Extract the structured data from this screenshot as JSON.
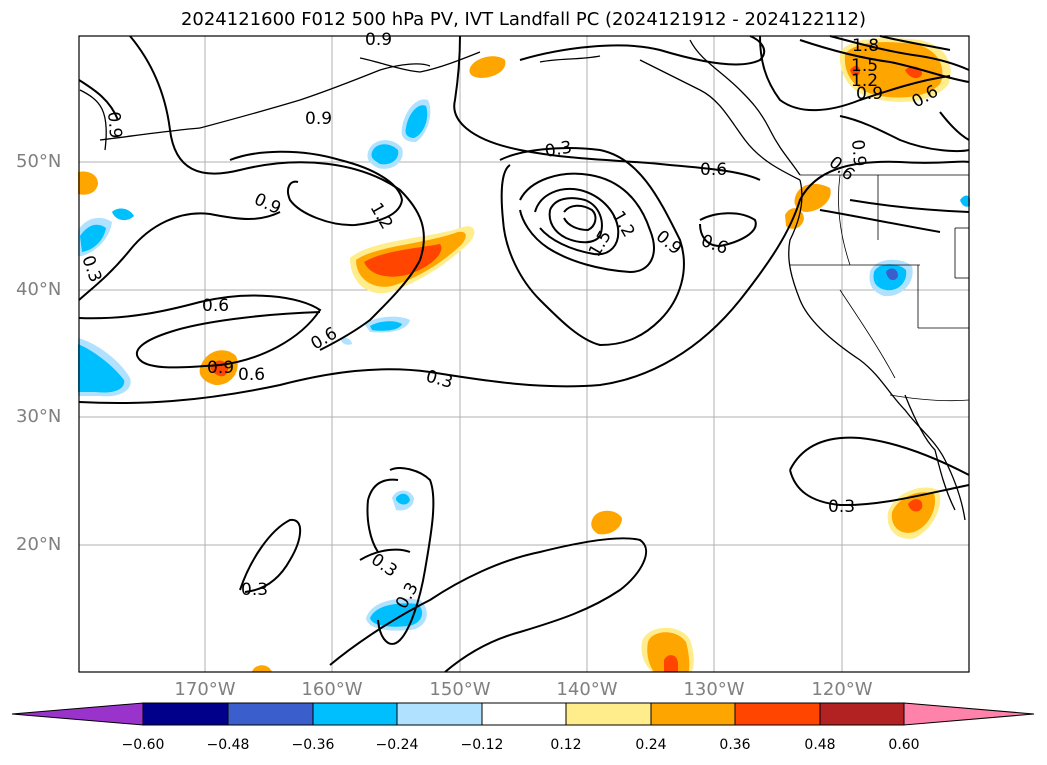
{
  "title": "2024121600 F012 500 hPa PV, IVT Landfall PC (2024121912 - 2024122112)",
  "lat_ticks": [
    "50°N",
    "40°N",
    "30°N",
    "20°N"
  ],
  "lon_ticks": [
    "170°W",
    "160°W",
    "150°W",
    "140°W",
    "130°W",
    "120°W"
  ],
  "contour_labels": [
    "0.9",
    "0.9",
    "0.9",
    "0.6",
    "0.6",
    "0.6",
    "0.6",
    "0.3",
    "0.3",
    "0.3",
    "0.3",
    "0.3",
    "0.3",
    "0.3",
    "1.2",
    "1.2",
    "1.5",
    "1.5",
    "1.8",
    "0.9",
    "0.6",
    "0.9",
    "0.9",
    "1.2",
    "0.6",
    "0.9",
    "0.9",
    "0.6"
  ],
  "colorbar": {
    "labels": [
      "−0.60",
      "−0.48",
      "−0.36",
      "−0.24",
      "−0.12",
      "0.12",
      "0.24",
      "0.36",
      "0.48",
      "0.60"
    ],
    "colors": [
      "#9933cc",
      "#00008b",
      "#3a5fcd",
      "#00bfff",
      "#b0e2ff",
      "#ffffff",
      "#ffec8b",
      "#ffa500",
      "#ff4500",
      "#b22222",
      "#ff82ab"
    ]
  }
}
